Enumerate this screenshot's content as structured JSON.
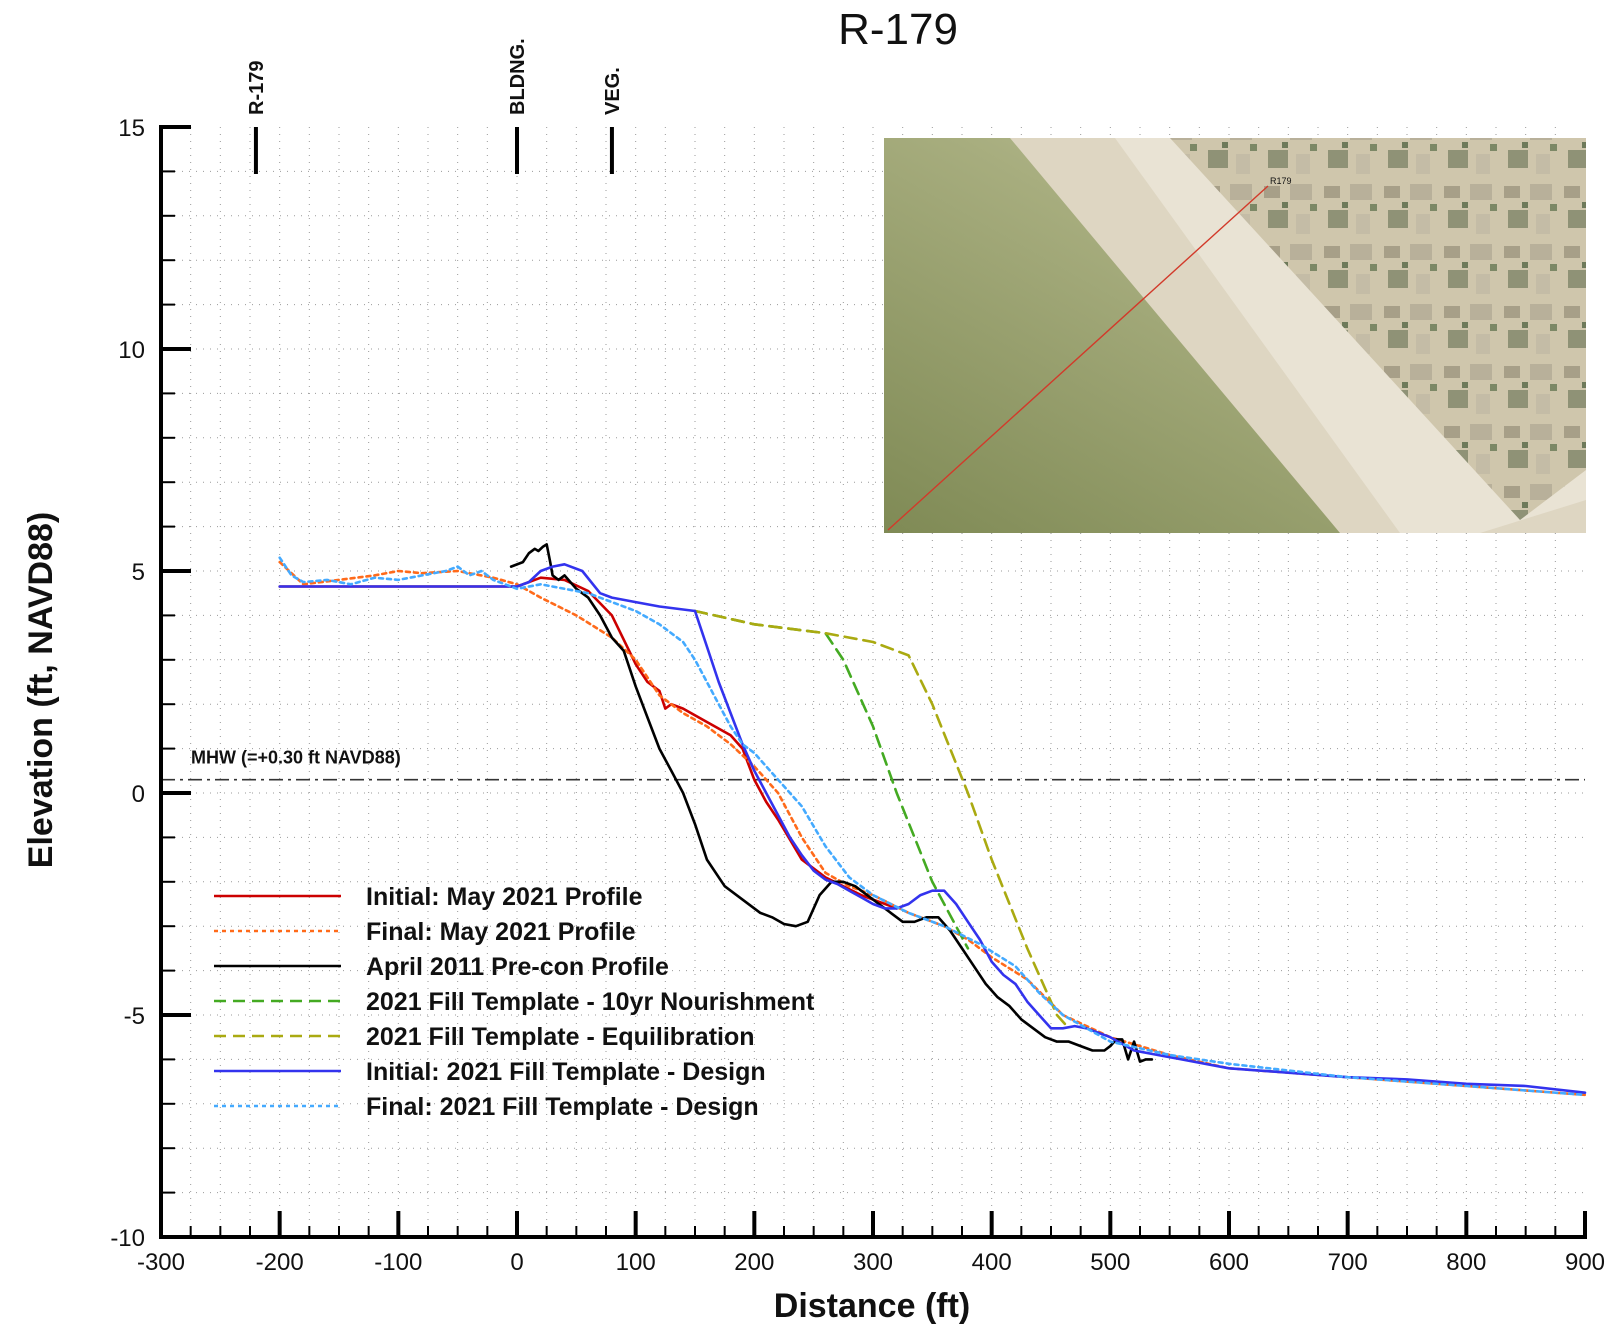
{
  "chart_data": {
    "type": "line",
    "title": "R-179",
    "xlabel": "Distance (ft)",
    "ylabel": "Elevation (ft, NAVD88)",
    "xlim": [
      -300,
      900
    ],
    "ylim": [
      -10,
      15
    ],
    "x_ticks": [
      "-300",
      "-200",
      "-100",
      "0",
      "100",
      "200",
      "300",
      "400",
      "500",
      "600",
      "700",
      "800",
      "900"
    ],
    "y_ticks": [
      "-10",
      "-5",
      "0",
      "5",
      "10",
      "15"
    ],
    "grid": true,
    "legend_position": "lower-left",
    "reference_line": {
      "label": "MHW (=+0.30 ft NAVD88)",
      "y": 0.3
    },
    "markers": [
      {
        "label": "R-179",
        "x": -220
      },
      {
        "label": "BLDNG.",
        "x": 0
      },
      {
        "label": "VEG.",
        "x": 80
      }
    ],
    "inset_image": {
      "label": "R179"
    },
    "series": [
      {
        "name": "Initial: May 2021 Profile",
        "color": "#cc0000",
        "dash": "solid",
        "x": [
          -200,
          -150,
          -100,
          -50,
          0,
          20,
          40,
          60,
          80,
          100,
          110,
          120,
          125,
          130,
          140,
          160,
          180,
          190,
          200,
          210,
          220,
          240,
          260,
          290,
          320
        ],
        "y": [
          4.65,
          4.65,
          4.65,
          4.65,
          4.65,
          4.85,
          4.8,
          4.55,
          4.0,
          2.9,
          2.5,
          2.3,
          1.9,
          2.0,
          1.9,
          1.6,
          1.3,
          1.0,
          0.3,
          -0.2,
          -0.6,
          -1.5,
          -1.9,
          -2.3,
          -2.6
        ]
      },
      {
        "name": "Final: May 2021 Profile",
        "color": "#ff6a1a",
        "dash": "dotted",
        "x": [
          -200,
          -180,
          -150,
          -120,
          -100,
          -80,
          -50,
          -20,
          0,
          20,
          50,
          80,
          100,
          120,
          140,
          160,
          180,
          200,
          220,
          240,
          260,
          280,
          300,
          330,
          360,
          380,
          400,
          430,
          460,
          500,
          550,
          600,
          650,
          700,
          750,
          800,
          900
        ],
        "y": [
          5.2,
          4.7,
          4.8,
          4.9,
          5.0,
          4.95,
          5.0,
          4.85,
          4.7,
          4.4,
          4.0,
          3.5,
          3.0,
          2.2,
          1.8,
          1.5,
          1.1,
          0.6,
          0.0,
          -1.0,
          -1.8,
          -2.1,
          -2.3,
          -2.7,
          -3.0,
          -3.3,
          -3.7,
          -4.2,
          -5.0,
          -5.5,
          -5.9,
          -6.2,
          -6.3,
          -6.4,
          -6.5,
          -6.6,
          -6.8
        ]
      },
      {
        "name": "April 2011 Pre-con Profile",
        "color": "#000000",
        "dash": "solid",
        "x": [
          -5,
          5,
          10,
          15,
          18,
          22,
          25,
          28,
          30,
          35,
          40,
          50,
          60,
          70,
          80,
          90,
          100,
          110,
          120,
          130,
          140,
          150,
          160,
          175,
          190,
          205,
          215,
          225,
          235,
          245,
          255,
          265,
          275,
          285,
          295,
          305,
          315,
          325,
          335,
          345,
          355,
          365,
          375,
          385,
          395,
          405,
          415,
          425,
          435,
          445,
          455,
          465,
          475,
          485,
          495,
          500,
          505,
          510,
          515,
          520,
          525,
          530,
          535
        ],
        "y": [
          5.1,
          5.2,
          5.4,
          5.5,
          5.45,
          5.55,
          5.6,
          5.2,
          4.9,
          4.8,
          4.9,
          4.6,
          4.4,
          4.0,
          3.5,
          3.2,
          2.4,
          1.7,
          1.0,
          0.5,
          0.0,
          -0.7,
          -1.5,
          -2.1,
          -2.4,
          -2.7,
          -2.8,
          -2.95,
          -3.0,
          -2.9,
          -2.3,
          -2.0,
          -2.0,
          -2.1,
          -2.3,
          -2.5,
          -2.7,
          -2.9,
          -2.9,
          -2.8,
          -2.8,
          -3.1,
          -3.5,
          -3.9,
          -4.3,
          -4.6,
          -4.8,
          -5.1,
          -5.3,
          -5.5,
          -5.6,
          -5.6,
          -5.7,
          -5.8,
          -5.8,
          -5.7,
          -5.55,
          -5.55,
          -6.0,
          -5.6,
          -6.05,
          -6.0,
          -6.0
        ]
      },
      {
        "name": "2021 Fill Template - 10yr Nourishment",
        "color": "#44aa22",
        "dash": "dashed",
        "x": [
          150,
          200,
          260,
          275,
          300,
          320,
          350,
          380
        ],
        "y": [
          4.1,
          3.8,
          3.6,
          3.0,
          1.5,
          0.0,
          -2.0,
          -3.5
        ]
      },
      {
        "name": "2021 Fill Template - Equilibration",
        "color": "#aaaa11",
        "dash": "dashed",
        "x": [
          150,
          200,
          260,
          300,
          330,
          350,
          380,
          400,
          430,
          455,
          465
        ],
        "y": [
          4.1,
          3.8,
          3.6,
          3.4,
          3.1,
          2.0,
          0.0,
          -1.5,
          -3.5,
          -5.0,
          -5.3
        ]
      },
      {
        "name": "Initial: 2021 Fill Template - Design",
        "color": "#3333ee",
        "dash": "solid",
        "x": [
          -200,
          -150,
          -100,
          -50,
          0,
          10,
          20,
          30,
          40,
          55,
          70,
          80,
          100,
          120,
          150,
          160,
          170,
          180,
          190,
          200,
          210,
          220,
          230,
          240,
          250,
          260,
          270,
          280,
          290,
          300,
          310,
          320,
          330,
          340,
          350,
          360,
          370,
          380,
          390,
          400,
          410,
          420,
          430,
          440,
          450,
          460,
          470,
          480,
          490,
          500,
          520,
          540,
          560,
          600,
          650,
          700,
          750,
          800,
          850,
          900
        ],
        "y": [
          4.65,
          4.65,
          4.65,
          4.65,
          4.65,
          4.75,
          5.0,
          5.1,
          5.15,
          5.0,
          4.5,
          4.4,
          4.3,
          4.2,
          4.1,
          3.3,
          2.5,
          1.8,
          1.1,
          0.5,
          0.0,
          -0.5,
          -1.0,
          -1.4,
          -1.75,
          -1.95,
          -2.05,
          -2.2,
          -2.35,
          -2.5,
          -2.6,
          -2.6,
          -2.5,
          -2.3,
          -2.2,
          -2.2,
          -2.5,
          -2.9,
          -3.3,
          -3.8,
          -4.1,
          -4.3,
          -4.7,
          -5.0,
          -5.3,
          -5.3,
          -5.25,
          -5.3,
          -5.4,
          -5.5,
          -5.8,
          -5.9,
          -6.0,
          -6.2,
          -6.3,
          -6.4,
          -6.45,
          -6.55,
          -6.6,
          -6.75
        ]
      },
      {
        "name": "Final: 2021 Fill Template - Design",
        "color": "#44aaff",
        "dash": "dotted",
        "x": [
          -200,
          -190,
          -180,
          -160,
          -140,
          -120,
          -100,
          -80,
          -60,
          -50,
          -40,
          -30,
          -20,
          -10,
          0,
          20,
          40,
          60,
          80,
          100,
          120,
          140,
          150,
          160,
          170,
          180,
          190,
          200,
          210,
          220,
          240,
          260,
          280,
          300,
          330,
          360,
          390,
          420,
          440,
          460,
          480,
          500,
          550,
          600,
          700,
          800,
          900
        ],
        "y": [
          5.3,
          4.9,
          4.75,
          4.8,
          4.7,
          4.85,
          4.8,
          4.9,
          5.0,
          5.1,
          4.9,
          5.0,
          4.8,
          4.7,
          4.6,
          4.7,
          4.6,
          4.5,
          4.3,
          4.1,
          3.8,
          3.4,
          3.0,
          2.5,
          2.0,
          1.5,
          1.1,
          0.9,
          0.6,
          0.3,
          -0.3,
          -1.2,
          -1.9,
          -2.3,
          -2.7,
          -3.0,
          -3.4,
          -3.9,
          -4.5,
          -5.0,
          -5.3,
          -5.6,
          -5.9,
          -6.1,
          -6.4,
          -6.6,
          -6.8
        ]
      }
    ]
  }
}
